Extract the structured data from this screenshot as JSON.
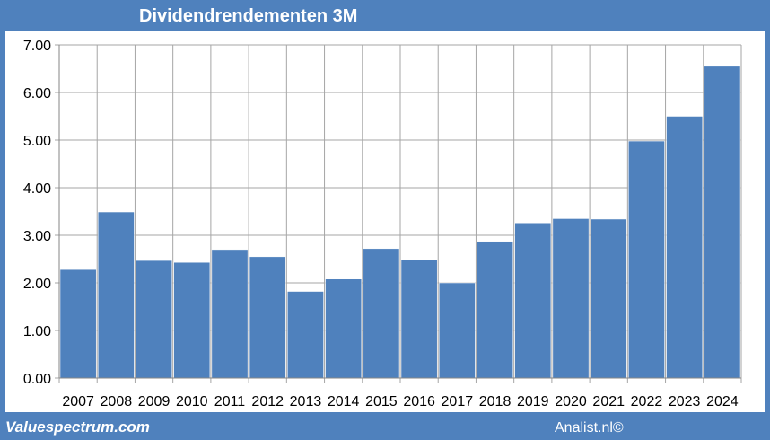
{
  "footer": {
    "brand": "Valuespectrum.com",
    "credit": "Analist.nl©"
  },
  "colors": {
    "frame": "#4f81bd",
    "bar": "#4f81bd",
    "plot_background": "#ffffff",
    "grid": "#a6a6a6",
    "text_light": "#ffffff",
    "text_dark": "#000000"
  },
  "chart_data": {
    "type": "bar",
    "title": "Dividendrendementen 3M",
    "categories": [
      "2007",
      "2008",
      "2009",
      "2010",
      "2011",
      "2012",
      "2013",
      "2014",
      "2015",
      "2016",
      "2017",
      "2018",
      "2019",
      "2020",
      "2021",
      "2022",
      "2023",
      "2024"
    ],
    "values": [
      2.28,
      3.49,
      2.47,
      2.43,
      2.7,
      2.55,
      1.82,
      2.08,
      2.72,
      2.49,
      2.0,
      2.87,
      3.26,
      3.35,
      3.34,
      4.98,
      5.5,
      6.55
    ],
    "y_ticks": [
      "0.00",
      "1.00",
      "2.00",
      "3.00",
      "4.00",
      "5.00",
      "6.00",
      "7.00"
    ],
    "ylim": [
      0,
      7
    ],
    "xlabel": "",
    "ylabel": "",
    "grid": "vertical and horizontal gridlines",
    "legend": "none"
  }
}
